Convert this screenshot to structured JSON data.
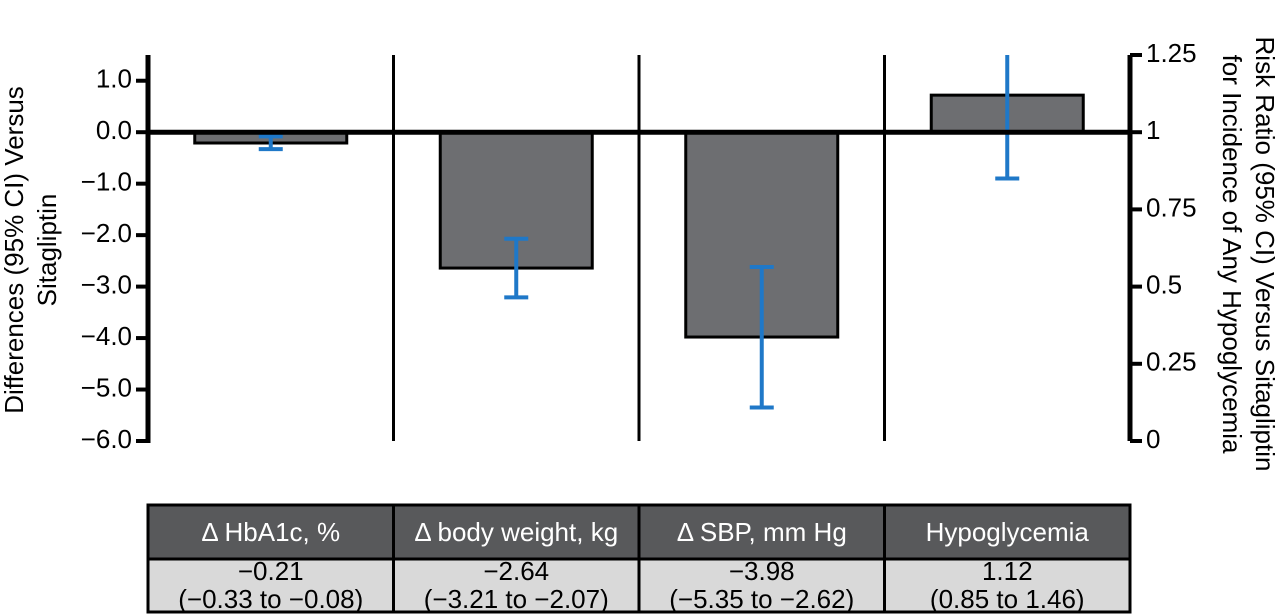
{
  "chart_data": {
    "type": "bar",
    "categories": [
      "Δ HbA1c, %",
      "Δ body weight, kg",
      "Δ SBP, mm Hg",
      "Hypoglycemia"
    ],
    "ylabel": [
      "Differences (95% CI) Versus",
      "Sitagliptin"
    ],
    "y2label": [
      "Risk Ratio (95% CI) Versus Sitagliptin",
      "for Incidence of Any Hypoglycemia"
    ],
    "ylim": [
      -6,
      1.5
    ],
    "yticks": [
      {
        "value": -6,
        "label": "−6.0"
      },
      {
        "value": -5,
        "label": "−5.0"
      },
      {
        "value": -4,
        "label": "−4.0"
      },
      {
        "value": -3,
        "label": "−3.0"
      },
      {
        "value": -2,
        "label": "−2.0"
      },
      {
        "value": -1,
        "label": "−1.0"
      },
      {
        "value": 0,
        "label": "0.0"
      },
      {
        "value": 1,
        "label": "1.0"
      }
    ],
    "y2lim": [
      0,
      1.25
    ],
    "y2ticks": [
      0,
      0.25,
      0.5,
      0.75,
      1,
      1.25
    ],
    "series": [
      {
        "color": "#6d6e71",
        "error_color": "#1f78c8",
        "values": [
          -0.21,
          -2.64,
          -3.98,
          null
        ],
        "value_labels": [
          "−0.21",
          "−2.64",
          "−3.98",
          null
        ],
        "ci_low": [
          -0.33,
          -3.21,
          -5.35,
          null
        ],
        "ci_high": [
          -0.08,
          -2.07,
          -2.62,
          null
        ],
        "ci_labels": [
          "(−0.33 to −0.08)",
          "(−3.21 to −2.07)",
          "(−5.35 to −2.62)",
          null
        ]
      },
      {
        "axis": "y2",
        "color": "#6d6e71",
        "error_color": "#1f78c8",
        "values": [
          null,
          null,
          null,
          1.12
        ],
        "value_labels": [
          null,
          null,
          null,
          "1.12"
        ],
        "ci_low": [
          null,
          null,
          null,
          0.85
        ],
        "ci_high": [
          null,
          null,
          null,
          1.46
        ],
        "ci_labels": [
          null,
          null,
          null,
          "(0.85 to 1.46)"
        ]
      }
    ]
  }
}
